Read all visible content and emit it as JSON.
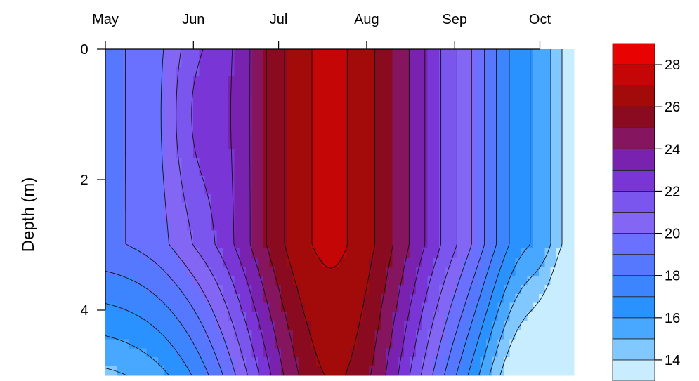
{
  "chart_data": {
    "type": "contour",
    "title": "",
    "xlabel": "",
    "ylabel": "Depth (m)",
    "x_tick_labels": [
      "May",
      "Jun",
      "Jul",
      "Aug",
      "Sep",
      "Oct"
    ],
    "x_ticks": [
      1,
      32,
      62,
      93,
      124,
      154
    ],
    "xlim": [
      1,
      166
    ],
    "y_tick_labels": [
      "0",
      "2",
      "4"
    ],
    "y_ticks": [
      0,
      2,
      4
    ],
    "ylim": [
      0,
      5
    ],
    "y_reversed": true,
    "color_key": {
      "levels": [
        13,
        14,
        15,
        16,
        17,
        18,
        19,
        20,
        21,
        22,
        23,
        24,
        25,
        26,
        27,
        28,
        29
      ],
      "colors": [
        "#c8edff",
        "#80c8ff",
        "#48a8ff",
        "#2a92ff",
        "#3d85ff",
        "#5578ff",
        "#6a70ff",
        "#8466f5",
        "#7a55ee",
        "#7a35d6",
        "#7a22b0",
        "#85155e",
        "#8a0a20",
        "#a30a0a",
        "#c40606",
        "#e80202"
      ],
      "tick_labels": [
        "14",
        "16",
        "18",
        "20",
        "22",
        "24",
        "26",
        "28"
      ],
      "tick_values": [
        14,
        16,
        18,
        20,
        22,
        24,
        26,
        28
      ]
    },
    "grid": false,
    "legend": "right"
  }
}
